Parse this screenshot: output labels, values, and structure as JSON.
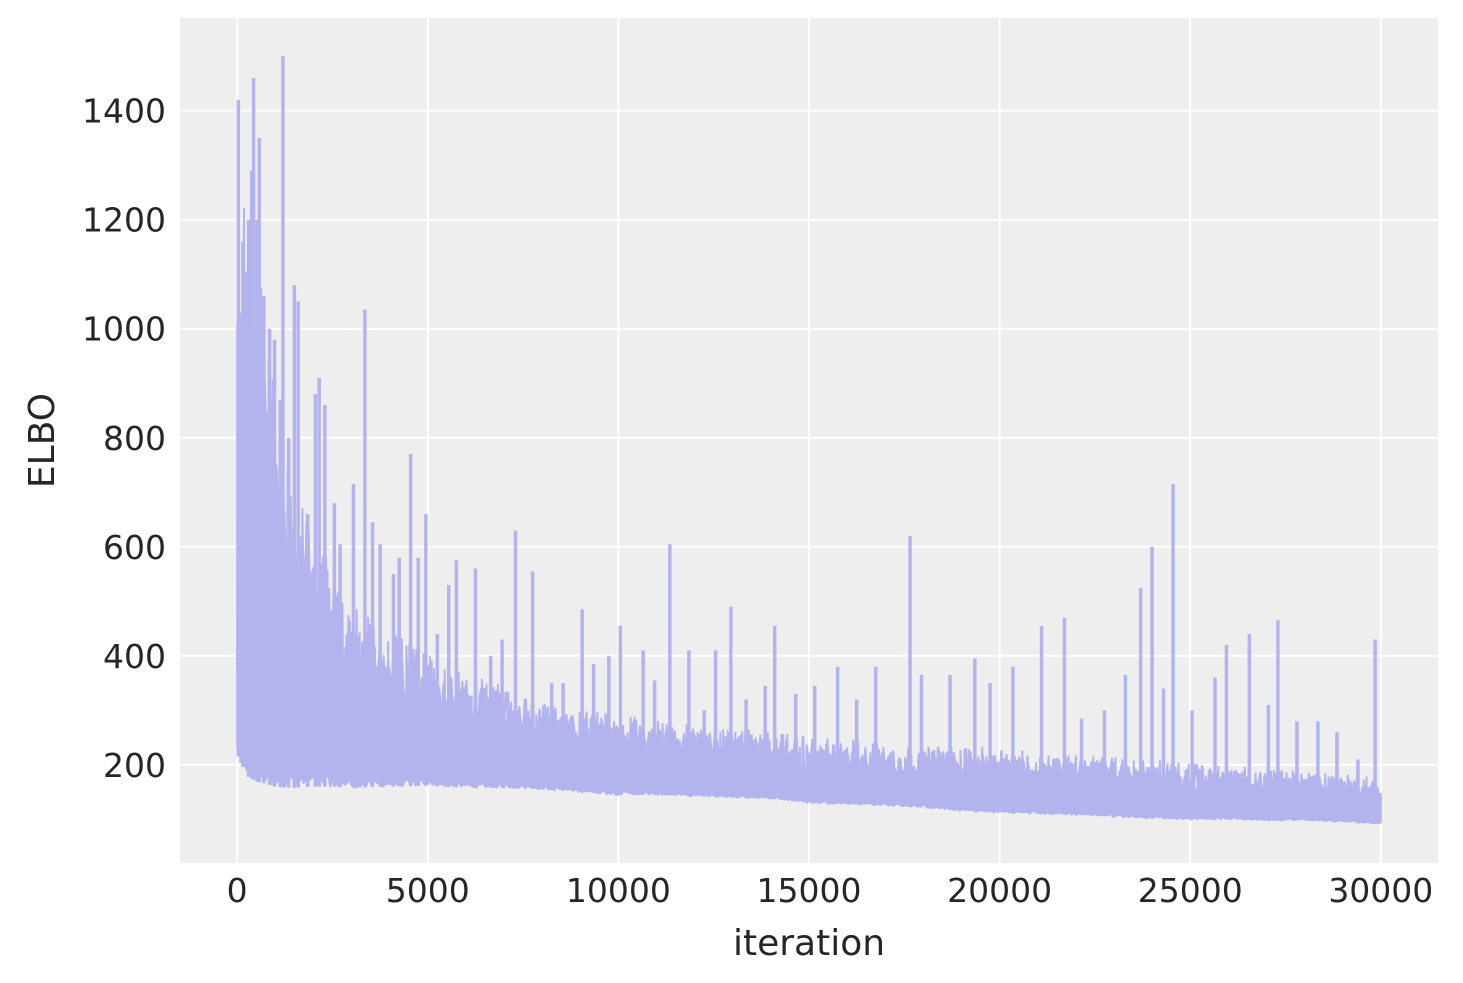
{
  "chart_data": {
    "type": "line",
    "title": "",
    "xlabel": "iteration",
    "ylabel": "ELBO",
    "xlim": [
      -1500,
      31500
    ],
    "ylim": [
      20,
      1570
    ],
    "grid": true,
    "legend": "none",
    "x_ticks": [
      0,
      5000,
      10000,
      15000,
      20000,
      25000,
      30000
    ],
    "x_tick_labels": [
      "0",
      "5000",
      "10000",
      "15000",
      "20000",
      "25000",
      "30000"
    ],
    "y_ticks": [
      200,
      400,
      600,
      800,
      1000,
      1200,
      1400
    ],
    "y_tick_labels": [
      "200",
      "400",
      "600",
      "800",
      "1000",
      "1200",
      "1400"
    ],
    "colors": {
      "plot_background": "#eeeeee",
      "grid": "#ffffff",
      "series": "#b3b3ee",
      "text": "#262626"
    },
    "series": [
      {
        "x": [
          0,
          250,
          500,
          750,
          1000,
          1500,
          2000,
          2500,
          3000,
          4000,
          5000,
          6000,
          7000,
          8000,
          9000,
          10000,
          11000,
          12000,
          13000,
          14000,
          15000,
          16000,
          17000,
          18000,
          19000,
          20000,
          21000,
          22000,
          23000,
          24000,
          25000,
          26000,
          27000,
          28000,
          29000,
          30000
        ],
        "lower": [
          220,
          180,
          170,
          165,
          160,
          158,
          160,
          160,
          158,
          160,
          162,
          158,
          158,
          155,
          150,
          145,
          145,
          142,
          140,
          138,
          130,
          128,
          125,
          122,
          115,
          112,
          110,
          108,
          105,
          102,
          100,
          100,
          98,
          98,
          95,
          92
        ],
        "upper": [
          1150,
          1200,
          1100,
          900,
          850,
          650,
          620,
          520,
          470,
          420,
          380,
          350,
          330,
          300,
          290,
          280,
          270,
          260,
          255,
          250,
          240,
          235,
          230,
          225,
          225,
          220,
          215,
          210,
          205,
          200,
          195,
          190,
          185,
          180,
          175,
          170
        ],
        "spikes": [
          [
            30,
            1420
          ],
          [
            100,
            1000
          ],
          [
            150,
            1160
          ],
          [
            300,
            1200
          ],
          [
            380,
            1290
          ],
          [
            430,
            1460
          ],
          [
            520,
            1200
          ],
          [
            580,
            1350
          ],
          [
            700,
            1060
          ],
          [
            850,
            1000
          ],
          [
            980,
            980
          ],
          [
            1130,
            870
          ],
          [
            1200,
            1500
          ],
          [
            1350,
            800
          ],
          [
            1500,
            1080
          ],
          [
            1600,
            1050
          ],
          [
            1850,
            660
          ],
          [
            2050,
            880
          ],
          [
            2150,
            910
          ],
          [
            2300,
            860
          ],
          [
            2550,
            680
          ],
          [
            2700,
            605
          ],
          [
            3050,
            715
          ],
          [
            3350,
            1035
          ],
          [
            3550,
            645
          ],
          [
            3750,
            605
          ],
          [
            4100,
            550
          ],
          [
            4250,
            580
          ],
          [
            4550,
            770
          ],
          [
            4750,
            580
          ],
          [
            4950,
            660
          ],
          [
            5250,
            440
          ],
          [
            5550,
            530
          ],
          [
            5750,
            575
          ],
          [
            6250,
            560
          ],
          [
            6650,
            400
          ],
          [
            6950,
            430
          ],
          [
            7300,
            630
          ],
          [
            7750,
            555
          ],
          [
            8250,
            350
          ],
          [
            8550,
            350
          ],
          [
            9050,
            485
          ],
          [
            9350,
            385
          ],
          [
            9750,
            400
          ],
          [
            10050,
            455
          ],
          [
            10650,
            410
          ],
          [
            10950,
            355
          ],
          [
            11350,
            605
          ],
          [
            11850,
            410
          ],
          [
            12250,
            300
          ],
          [
            12550,
            410
          ],
          [
            12950,
            490
          ],
          [
            13350,
            320
          ],
          [
            13850,
            345
          ],
          [
            14100,
            455
          ],
          [
            14650,
            330
          ],
          [
            15150,
            345
          ],
          [
            15750,
            380
          ],
          [
            16250,
            320
          ],
          [
            16750,
            380
          ],
          [
            17650,
            620
          ],
          [
            17950,
            365
          ],
          [
            18700,
            365
          ],
          [
            19350,
            395
          ],
          [
            19750,
            350
          ],
          [
            20350,
            380
          ],
          [
            21100,
            455
          ],
          [
            21700,
            470
          ],
          [
            22150,
            285
          ],
          [
            22750,
            300
          ],
          [
            23300,
            365
          ],
          [
            23700,
            525
          ],
          [
            24000,
            600
          ],
          [
            24300,
            340
          ],
          [
            24550,
            715
          ],
          [
            25050,
            300
          ],
          [
            25650,
            360
          ],
          [
            25950,
            420
          ],
          [
            26550,
            440
          ],
          [
            27050,
            310
          ],
          [
            27300,
            465
          ],
          [
            27800,
            280
          ],
          [
            28350,
            280
          ],
          [
            28850,
            260
          ],
          [
            29400,
            210
          ],
          [
            29850,
            430
          ]
        ]
      }
    ]
  }
}
